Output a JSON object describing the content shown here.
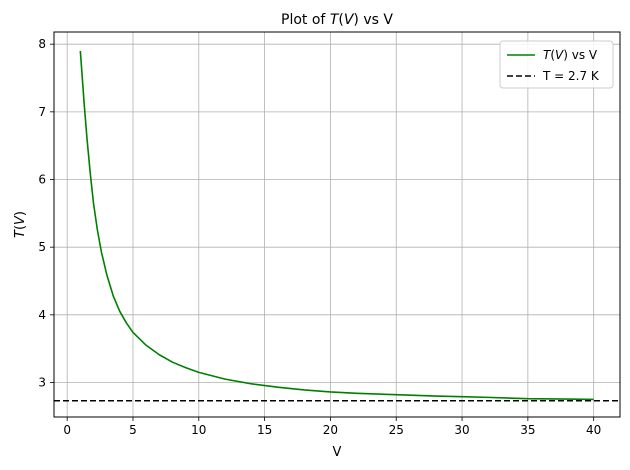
{
  "chart_data": {
    "type": "line",
    "title": {
      "prefix": "Plot of ",
      "italic": "T",
      "paren_open": "(",
      "italic2": "V",
      "paren_close": ")",
      "suffix": " vs V"
    },
    "xlabel": "V",
    "ylabel": {
      "italic": "T",
      "paren_open": "(",
      "italic2": "V",
      "paren_close": ")"
    },
    "xlim": [
      -1,
      42
    ],
    "ylim": [
      2.49,
      8.18
    ],
    "x_ticks": [
      0,
      5,
      10,
      15,
      20,
      25,
      30,
      35,
      40
    ],
    "y_ticks": [
      3,
      4,
      5,
      6,
      7,
      8
    ],
    "grid": true,
    "legend_position": "top-right",
    "series": [
      {
        "name": {
          "italic": "T",
          "paren_open": "(",
          "italic2": "V",
          "paren_close": ")",
          "suffix": " vs V"
        },
        "color": "#008000",
        "style": "solid",
        "points": [
          [
            1,
            7.9
          ],
          [
            1.3,
            7.1
          ],
          [
            1.5,
            6.62
          ],
          [
            1.75,
            6.1
          ],
          [
            2,
            5.65
          ],
          [
            2.3,
            5.25
          ],
          [
            2.6,
            4.93
          ],
          [
            3,
            4.6
          ],
          [
            3.5,
            4.28
          ],
          [
            4,
            4.05
          ],
          [
            4.5,
            3.88
          ],
          [
            5,
            3.74
          ],
          [
            6,
            3.55
          ],
          [
            7,
            3.41
          ],
          [
            8,
            3.3
          ],
          [
            9,
            3.22
          ],
          [
            10,
            3.15
          ],
          [
            12,
            3.05
          ],
          [
            14,
            2.98
          ],
          [
            16,
            2.93
          ],
          [
            18,
            2.89
          ],
          [
            20,
            2.86
          ],
          [
            22,
            2.84
          ],
          [
            25,
            2.82
          ],
          [
            28,
            2.8
          ],
          [
            30,
            2.79
          ],
          [
            32,
            2.78
          ],
          [
            35,
            2.76
          ],
          [
            38,
            2.755
          ],
          [
            40,
            2.75
          ]
        ]
      },
      {
        "name": "T = 2.7 K",
        "color": "#000000",
        "style": "dashed",
        "hline": 2.73
      }
    ]
  }
}
